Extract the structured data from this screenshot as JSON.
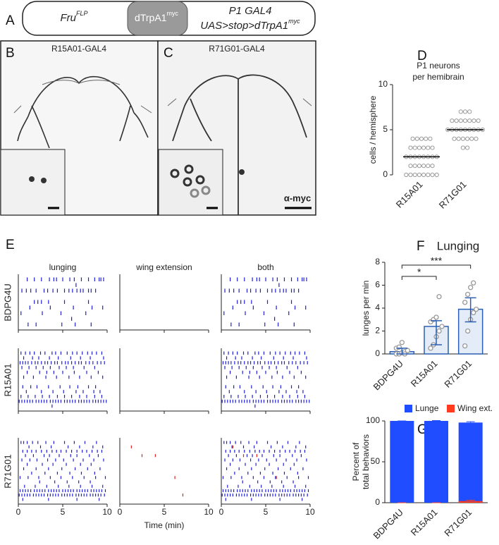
{
  "panel_labels": [
    "A",
    "B",
    "C",
    "D",
    "E",
    "F",
    "G"
  ],
  "schematic": {
    "left": "Fru",
    "left_sup": "FLP",
    "middle": "dTrpA1",
    "middle_sup": "myc",
    "right_line1": "P1 GAL4",
    "right_line2": "UAS>stop>dTrpA1",
    "right_sup": "myc"
  },
  "images": [
    {
      "title": "R15A01-GAL4"
    },
    {
      "title": "R71G01-GAL4",
      "stain": "α-myc"
    }
  ],
  "chart_data": [
    {
      "type": "strip",
      "title": [
        "P1 neurons",
        "per hemibrain"
      ],
      "ylabel": "cells / hemisphere",
      "categories": [
        "R15A01",
        "R71G01"
      ],
      "values": [
        [
          4,
          4,
          4,
          4,
          4,
          3,
          3,
          3,
          3,
          3,
          3,
          2,
          2,
          2,
          2,
          2,
          2,
          2,
          2,
          1,
          1,
          1,
          1,
          1,
          1,
          0,
          0,
          0,
          0,
          0,
          0,
          0,
          0
        ],
        [
          7,
          7,
          7,
          6,
          6,
          6,
          6,
          6,
          6,
          6,
          5,
          5,
          5,
          5,
          5,
          5,
          5,
          5,
          5,
          4,
          4,
          4,
          4,
          4,
          4,
          3,
          3
        ]
      ],
      "medians": [
        2,
        5
      ],
      "ylim": [
        0,
        10
      ],
      "yticks": [
        0,
        5,
        10
      ],
      "color": "#9a9a9a"
    },
    {
      "type": "raster",
      "columns": [
        "lunging",
        "wing extension",
        "both"
      ],
      "xlabel": "Time (min)",
      "xlim": [
        0,
        10
      ],
      "xticks": [
        0,
        5,
        10
      ],
      "lunge_color": "#2020d0",
      "wing_color": "#e02020",
      "genotypes": [
        {
          "name": "BDPG4U",
          "lunging": [
            [
              1.0,
              1.8,
              2.6,
              3.5,
              4.0,
              4.3,
              5.0,
              5.8,
              6.3,
              7.1,
              7.9,
              8.6,
              9.1,
              9.3,
              9.6
            ],
            [
              6.5
            ],
            [
              0.4,
              0.9,
              1.4,
              2.0,
              2.9,
              3.3,
              3.9,
              4.4,
              5.2,
              5.7,
              6.1,
              6.6,
              7.0,
              7.3,
              7.9,
              8.2,
              8.7
            ],
            [],
            [
              1.8,
              2.2,
              2.6,
              3.4,
              5.2,
              7.9
            ],
            [
              1.3,
              3.6,
              6.2,
              8.3,
              9.5
            ],
            [
              0.3,
              2.7,
              4.8,
              7.6
            ],
            [
              6.0
            ],
            [
              1.1,
              2.0,
              4.9,
              6.4,
              8.2
            ]
          ],
          "wing": [
            [],
            [],
            [],
            [],
            [],
            [],
            [],
            [],
            []
          ]
        },
        {
          "name": "R15A01",
          "lunging": [
            [
              0.3,
              0.8,
              1.3,
              1.8,
              2.5,
              3.0,
              3.8,
              4.2,
              4.8,
              5.5,
              6.1,
              6.6,
              7.2,
              7.8,
              8.3,
              8.8,
              9.4
            ],
            [
              0.6,
              1.6,
              2.3,
              3.5,
              4.5,
              5.9,
              7.0,
              8.1,
              9.6
            ],
            [
              0.2,
              0.5,
              0.8,
              1.1,
              1.5,
              1.9,
              2.2,
              2.6,
              3.0,
              3.3,
              3.7,
              4.1,
              4.4,
              4.9,
              5.3,
              5.6,
              6.0,
              6.4,
              6.8,
              7.1,
              7.6,
              8.0,
              8.4,
              8.9,
              9.3,
              9.7
            ],
            [
              0.4,
              1.2,
              2.0,
              2.8,
              3.6,
              4.6,
              5.4,
              6.2,
              7.4,
              8.6
            ],
            [
              1.0,
              2.4,
              3.2,
              4.0,
              5.0,
              6.3,
              7.7,
              9.0
            ],
            [
              0.6,
              1.7,
              3.1,
              4.3,
              5.7,
              6.9,
              8.2,
              9.5
            ],
            [],
            [
              0.5,
              1.4,
              2.1,
              3.4,
              4.7,
              5.8,
              6.7,
              7.9,
              8.7
            ],
            [
              0.9,
              2.6,
              3.9,
              5.1,
              6.5,
              7.3,
              8.5,
              9.2
            ],
            [
              0.3,
              1.1,
              1.9,
              2.7,
              3.5,
              4.4,
              5.2,
              6.0,
              6.9,
              7.7,
              8.6,
              9.4
            ],
            [
              0.1,
              0.4,
              0.7,
              1.0,
              1.3,
              1.6,
              2.0,
              2.3,
              2.6,
              2.9,
              3.2,
              3.6,
              3.9,
              4.2,
              4.5,
              4.8,
              5.2,
              5.5,
              5.8,
              6.1,
              6.4,
              6.8,
              7.1,
              7.4,
              7.7,
              8.0,
              8.4,
              8.7,
              9.0,
              9.3,
              9.6,
              9.9
            ],
            [
              3.8
            ]
          ],
          "wing": [
            [],
            [],
            [],
            [],
            [],
            [],
            [],
            [],
            [],
            [],
            [],
            []
          ]
        },
        {
          "name": "R71G01",
          "lunging": [
            [
              0.3,
              0.6,
              1.0,
              1.6,
              2.2,
              3.1,
              4.0,
              5.2,
              6.3,
              7.5,
              8.8
            ],
            [
              1.2,
              2.5,
              3.7,
              5.6,
              6.9,
              8.4,
              9.5
            ],
            [
              0.5,
              1.0,
              1.5,
              2.0,
              2.6,
              3.2,
              3.8,
              4.3,
              4.8,
              5.4,
              6.0,
              6.6,
              7.2,
              7.7,
              8.3,
              8.9,
              9.4
            ],
            [
              0.8,
              1.7,
              2.9,
              3.5,
              4.6,
              5.9,
              6.6,
              8.0,
              9.0
            ],
            [
              0.4,
              1.3,
              2.1,
              3.3,
              4.2,
              5.1,
              6.2,
              7.3,
              8.5,
              9.6
            ],
            [
              1.0,
              2.7,
              3.9,
              5.4,
              7.0,
              8.2
            ],
            [
              0.6,
              2.0,
              3.4,
              4.9,
              6.4,
              7.8,
              9.2
            ],
            [
              1.5,
              3.0,
              4.4,
              5.8,
              7.1,
              8.6
            ],
            [
              0.2,
              1.1,
              2.3,
              3.6,
              4.8,
              6.1,
              7.4,
              8.7,
              9.8
            ],
            [
              2.4,
              4.1,
              5.5,
              6.8,
              8.1
            ],
            [
              0.7,
              1.9,
              3.2,
              4.5,
              5.7,
              7.0,
              8.3,
              9.5
            ],
            [
              0.2,
              0.5,
              0.8,
              1.1,
              1.4,
              1.8,
              2.1,
              2.4,
              2.7,
              3.0,
              3.4,
              3.7,
              4.0,
              4.3,
              4.6,
              5.0,
              5.3,
              5.6,
              5.9,
              6.2,
              6.6,
              6.9,
              7.2,
              7.5,
              7.8,
              8.2,
              8.5,
              8.8,
              9.1,
              9.4,
              9.8
            ],
            [
              0.1,
              0.4,
              0.7,
              1.0,
              1.3,
              1.7,
              2.0,
              2.3,
              2.6,
              2.9,
              3.3,
              3.6,
              3.9,
              4.2,
              4.5,
              4.9,
              5.2,
              5.5,
              5.8,
              6.1,
              6.5,
              6.8,
              7.1,
              7.4,
              7.7,
              8.1,
              8.4,
              8.7,
              9.0,
              9.3,
              9.7
            ],
            [
              0.5,
              3.4,
              6.6,
              9.1
            ]
          ],
          "wing": [
            [],
            [
              1.3
            ],
            [],
            [
              2.5,
              4.0
            ],
            [],
            [],
            [],
            [],
            [
              6.2
            ],
            [],
            [],
            [],
            [
              7.1
            ],
            []
          ]
        }
      ]
    },
    {
      "type": "bar_scatter",
      "title": "Lunging",
      "ylabel": "lunges per min",
      "categories": [
        "BDPG4U",
        "R15A01",
        "R71G01"
      ],
      "values": [
        0.2,
        2.4,
        3.9
      ],
      "error_low": [
        0,
        0.8,
        2.8
      ],
      "error_high": [
        0.5,
        2.9,
        4.9
      ],
      "points": [
        [
          0,
          0,
          0.1,
          0.2,
          0.3,
          0.5,
          0.6,
          1.0,
          0
        ],
        [
          0.5,
          0.8,
          1.5,
          2.0,
          2.4,
          2.8,
          3.0,
          3.2,
          5.0
        ],
        [
          0.7,
          2.0,
          3.0,
          3.6,
          3.9,
          4.5,
          5.2,
          5.8,
          6.2
        ]
      ],
      "ylim": [
        0,
        8
      ],
      "yticks": [
        0,
        2,
        4,
        6,
        8
      ],
      "color": "#2b5fb4",
      "point_color": "#999999",
      "significance": [
        {
          "between": [
            "BDPG4U",
            "R15A01"
          ],
          "label": "*"
        },
        {
          "between": [
            "BDPG4U",
            "R71G01"
          ],
          "label": "***"
        }
      ]
    },
    {
      "type": "stacked_bar",
      "ylabel": [
        "Percent of",
        "total behaviors"
      ],
      "categories": [
        "BDPG4U",
        "R15A01",
        "R71G01"
      ],
      "series": [
        {
          "name": "Lunge",
          "color": "#1f4dff",
          "values": [
            100,
            100,
            98
          ],
          "error": [
            0,
            0.4,
            1
          ]
        },
        {
          "name": "Wing ext.",
          "color": "#ff3a1f",
          "values": [
            0,
            0,
            2
          ],
          "error": [
            0,
            0,
            1
          ]
        }
      ],
      "ylim": [
        0,
        100
      ],
      "yticks": [
        0,
        50,
        100
      ],
      "legend": "top"
    }
  ]
}
